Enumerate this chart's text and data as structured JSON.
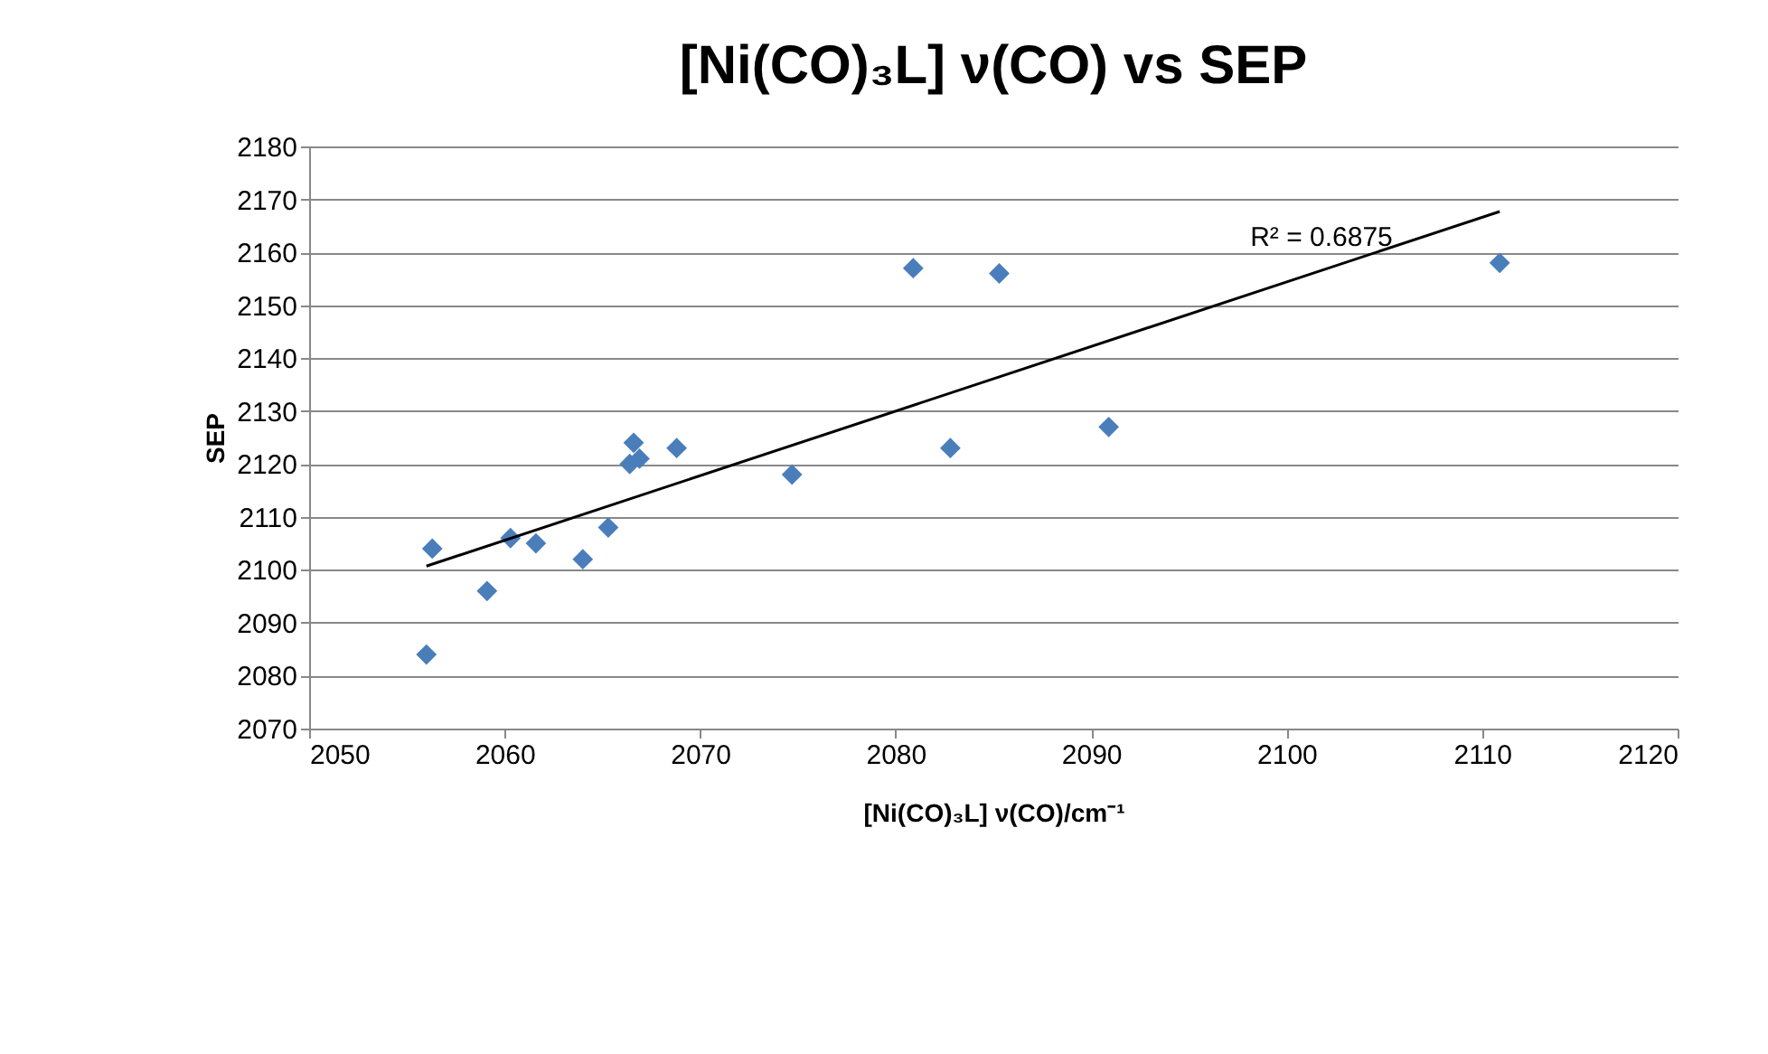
{
  "chart_data": {
    "type": "scatter",
    "title": "[Ni(CO)₃L] ν(CO) vs SEP",
    "xlabel": "[Ni(CO)₃L] ν(CO)/cm⁻¹",
    "ylabel": "SEP",
    "series": [
      {
        "type": "scatter",
        "color": "#4a7ebb",
        "marker": "diamond",
        "x": [
          2056.3,
          2056.0,
          2059.1,
          2060.3,
          2061.6,
          2064.0,
          2065.3,
          2066.4,
          2066.6,
          2066.9,
          2068.8,
          2074.7,
          2080.9,
          2082.8,
          2085.3,
          2090.9,
          2110.9
        ],
        "values": [
          2104,
          2084,
          2096,
          2106,
          2105,
          2102,
          2108,
          2120,
          2124,
          2121,
          2123,
          2118,
          2157,
          2123,
          2156,
          2127,
          2158
        ]
      },
      {
        "type": "line",
        "color": "#000000",
        "marker": "none",
        "x": [
          2056.0,
          2110.9
        ],
        "values": [
          2100.7,
          2167.7
        ]
      }
    ],
    "annotations": [
      "R² = 0.6875"
    ],
    "xlim": [
      2050,
      2120
    ],
    "xticks": [
      2050,
      2060,
      2070,
      2080,
      2090,
      2100,
      2110,
      2120
    ],
    "ylim": [
      2070,
      2180
    ],
    "yticks": [
      2070,
      2080,
      2090,
      2100,
      2110,
      2120,
      2130,
      2140,
      2150,
      2160,
      2170,
      2180
    ],
    "grid": "y"
  }
}
